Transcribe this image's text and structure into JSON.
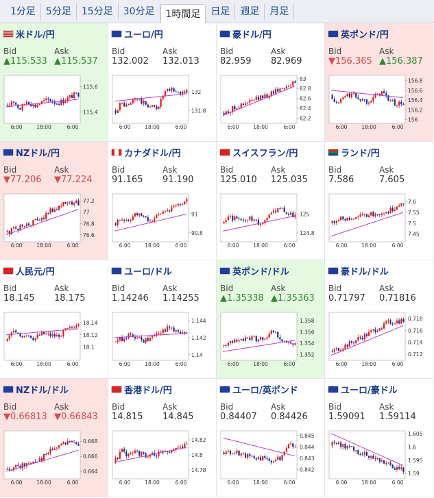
{
  "tabs": [
    "1分足",
    "5分足",
    "15分足",
    "30分足",
    "1時間足",
    "日足",
    "週足",
    "月足"
  ],
  "active_tab": 4,
  "labels": {
    "bid": "Bid",
    "ask": "Ask"
  },
  "pairs": [
    {
      "name": "米ドル/円",
      "bid": "▲115.533",
      "ask": "▲115.537",
      "trend": "up",
      "flag": "us",
      "chart_data": {
        "type": "candlestick",
        "yticks": [
          "115.6",
          "115.4"
        ],
        "xticks": [
          "6:00",
          "18:00",
          "6:00"
        ],
        "ylim": [
          115.32,
          115.68
        ],
        "start": 115.45,
        "end": 115.53,
        "ma_start": 115.44,
        "ma_end": 115.5,
        "shape": [
          0,
          0.6,
          0.1,
          0.5,
          0.2,
          0.4,
          0.5,
          0.3,
          0.4,
          0.6,
          0.7
        ]
      }
    },
    {
      "name": "ユーロ/円",
      "bid": "132.002",
      "ask": "132.013",
      "trend": "none",
      "flag": "eu",
      "chart_data": {
        "type": "candlestick",
        "yticks": [
          "132",
          "131.8"
        ],
        "xticks": [
          "6:00",
          "18:00",
          "6:00"
        ],
        "ylim": [
          131.68,
          132.16
        ],
        "start": 131.8,
        "end": 132.0,
        "ma_start": 131.9,
        "ma_end": 131.98,
        "shape": [
          0,
          0.5,
          0.3,
          0.7,
          0.4,
          0.2,
          0.1,
          0.8,
          0.9,
          0.7,
          0.75
        ]
      }
    },
    {
      "name": "豪ドル/円",
      "bid": "82.959",
      "ask": "82.969",
      "trend": "none",
      "flag": "au",
      "chart_data": {
        "type": "candlestick",
        "yticks": [
          "83",
          "82.8",
          "82.6",
          "82.4",
          "82.2"
        ],
        "xticks": [
          "6:00",
          "18:00",
          "6:00"
        ],
        "ylim": [
          82.12,
          83.04
        ],
        "start": 82.3,
        "end": 82.95,
        "ma_start": 82.25,
        "ma_end": 82.85,
        "shape": [
          0,
          0.15,
          0.3,
          0.3,
          0.45,
          0.5,
          0.55,
          0.7,
          0.8,
          0.9,
          0.95
        ]
      }
    },
    {
      "name": "英ポンド/円",
      "bid": "▼156.365",
      "ask": "▲156.387",
      "trend": "mix",
      "flag": "gb",
      "chart_data": {
        "type": "candlestick",
        "yticks": [
          "156.8",
          "156.6",
          "156.4",
          "156.2",
          "156"
        ],
        "xticks": [
          "6:00",
          "18:00",
          "6:00"
        ],
        "ylim": [
          155.95,
          156.88
        ],
        "start": 156.5,
        "end": 156.36,
        "ma_start": 156.6,
        "ma_end": 156.45,
        "shape": [
          0.5,
          0.2,
          0.6,
          0.7,
          0.5,
          0.4,
          0.6,
          0.9,
          0.5,
          0.3,
          0.35
        ]
      }
    },
    {
      "name": "NZドル/円",
      "bid": "▼77.206",
      "ask": "▼77.224",
      "trend": "down",
      "flag": "nz",
      "chart_data": {
        "type": "candlestick",
        "yticks": [
          "77.2",
          "77",
          "76.8",
          "76.6"
        ],
        "xticks": [
          "6:00",
          "18:00",
          "6:00"
        ],
        "ylim": [
          76.5,
          77.3
        ],
        "start": 76.65,
        "end": 77.2,
        "ma_start": 76.6,
        "ma_end": 77.05,
        "shape": [
          0,
          0.1,
          0.2,
          0.25,
          0.35,
          0.4,
          0.75,
          0.85,
          0.95,
          0.92,
          0.9
        ]
      }
    },
    {
      "name": "カナダドル/円",
      "bid": "91.165",
      "ask": "91.190",
      "trend": "none",
      "flag": "ca",
      "chart_data": {
        "type": "candlestick",
        "yticks": [
          "91",
          "90.8"
        ],
        "xticks": [
          "6:00",
          "18:00",
          "6:00"
        ],
        "ylim": [
          90.72,
          91.2
        ],
        "start": 90.9,
        "end": 91.17,
        "ma_start": 90.82,
        "ma_end": 91.0,
        "shape": [
          0.3,
          0.5,
          0.4,
          0.6,
          0.5,
          0.2,
          0.4,
          0.6,
          0.7,
          0.85,
          0.95
        ]
      }
    },
    {
      "name": "スイスフラン/円",
      "bid": "125.010",
      "ask": "125.035",
      "trend": "none",
      "flag": "ch",
      "chart_data": {
        "type": "candlestick",
        "yticks": [
          "125",
          "124.8"
        ],
        "xticks": [
          "6:00",
          "18:00",
          "6:00"
        ],
        "ylim": [
          124.72,
          125.2
        ],
        "start": 124.9,
        "end": 125.01,
        "ma_start": 124.82,
        "ma_end": 124.98,
        "shape": [
          0.4,
          0.6,
          0.5,
          0.3,
          0.5,
          0.2,
          0.4,
          0.7,
          0.95,
          0.6,
          0.55
        ]
      }
    },
    {
      "name": "ランド/円",
      "bid": "7.586",
      "ask": "7.605",
      "trend": "none",
      "flag": "za",
      "chart_data": {
        "type": "candlestick",
        "yticks": [
          "7.6",
          "7.55",
          "7.5",
          "7.45"
        ],
        "xticks": [
          "6:00",
          "18:00",
          "6:00"
        ],
        "ylim": [
          7.42,
          7.63
        ],
        "start": 7.5,
        "end": 7.59,
        "ma_start": 7.44,
        "ma_end": 7.55,
        "shape": [
          0.4,
          0.5,
          0.5,
          0.55,
          0.5,
          0.55,
          0.55,
          0.6,
          0.65,
          0.8,
          0.95
        ]
      }
    },
    {
      "name": "人民元/円",
      "bid": "18.145",
      "ask": "18.175",
      "trend": "none",
      "flag": "cn",
      "chart_data": {
        "type": "candlestick",
        "yticks": [
          "18.14",
          "18.12",
          "18.1"
        ],
        "xticks": [
          "6:00",
          "18:00",
          "6:00"
        ],
        "ylim": [
          18.08,
          18.155
        ],
        "start": 18.11,
        "end": 18.145,
        "ma_start": 18.12,
        "ma_end": 18.13,
        "shape": [
          0.2,
          0.8,
          0.5,
          0.6,
          0.3,
          0.5,
          0.4,
          0.3,
          0.5,
          0.6,
          0.9
        ]
      }
    },
    {
      "name": "ユーロ/ドル",
      "bid": "1.14246",
      "ask": "1.14255",
      "trend": "none",
      "flag": "eu",
      "chart_data": {
        "type": "candlestick",
        "yticks": [
          "1.144",
          "1.142",
          "1.14"
        ],
        "xticks": [
          "6:00",
          "18:00",
          "6:00"
        ],
        "ylim": [
          1.1395,
          1.1448
        ],
        "start": 1.1415,
        "end": 1.1425,
        "ma_start": 1.142,
        "ma_end": 1.1425,
        "shape": [
          0.5,
          0.4,
          0.6,
          0.5,
          0.3,
          0.4,
          0.7,
          0.8,
          0.9,
          0.6,
          0.55
        ]
      }
    },
    {
      "name": "英ポンド/ドル",
      "bid": "▲1.35338",
      "ask": "▲1.35363",
      "trend": "up",
      "flag": "gb",
      "chart_data": {
        "type": "candlestick",
        "yticks": [
          "1.358",
          "1.356",
          "1.354",
          "1.352"
        ],
        "xticks": [
          "6:00",
          "18:00",
          "6:00"
        ],
        "ylim": [
          1.3512,
          1.3592
        ],
        "start": 1.3535,
        "end": 1.3534,
        "ma_start": 1.3525,
        "ma_end": 1.3545,
        "shape": [
          0.3,
          0.4,
          0.5,
          0.5,
          0.6,
          0.55,
          0.7,
          0.9,
          0.6,
          0.4,
          0.35
        ]
      }
    },
    {
      "name": "豪ドル/ドル",
      "bid": "0.71797",
      "ask": "0.71816",
      "trend": "none",
      "flag": "au",
      "chart_data": {
        "type": "candlestick",
        "yticks": [
          "0.718",
          "0.716",
          "0.714",
          "0.712"
        ],
        "xticks": [
          "6:00",
          "18:00",
          "6:00"
        ],
        "ylim": [
          0.7112,
          0.7188
        ],
        "start": 0.7125,
        "end": 0.718,
        "ma_start": 0.7118,
        "ma_end": 0.7168,
        "shape": [
          0,
          0.1,
          0.2,
          0.3,
          0.45,
          0.55,
          0.7,
          0.85,
          0.95,
          0.95,
          0.92
        ]
      }
    },
    {
      "name": "NZドル/ドル",
      "bid": "▼0.66813",
      "ask": "▼0.66843",
      "trend": "down",
      "flag": "nz",
      "chart_data": {
        "type": "candlestick",
        "yticks": [
          "0.668",
          "0.666",
          "0.664"
        ],
        "xticks": [
          "6:00",
          "18:00",
          "6:00"
        ],
        "ylim": [
          0.6632,
          0.6692
        ],
        "start": 0.6642,
        "end": 0.6681,
        "ma_start": 0.664,
        "ma_end": 0.6668,
        "shape": [
          0,
          0.1,
          0.15,
          0.2,
          0.3,
          0.35,
          0.6,
          0.75,
          0.9,
          0.85,
          0.8
        ]
      }
    },
    {
      "name": "香港ドル/円",
      "bid": "14.815",
      "ask": "14.845",
      "trend": "none",
      "flag": "hk",
      "chart_data": {
        "type": "candlestick",
        "yticks": [
          "14.82",
          "14.8",
          "14.78"
        ],
        "xticks": [
          "6:00",
          "18:00",
          "6:00"
        ],
        "ylim": [
          14.77,
          14.83
        ],
        "start": 14.79,
        "end": 14.815,
        "ma_start": 14.79,
        "ma_end": 14.81,
        "shape": [
          0.2,
          0.8,
          0.6,
          0.7,
          0.5,
          0.4,
          0.5,
          0.45,
          0.6,
          0.65,
          0.75
        ]
      }
    },
    {
      "name": "ユーロ/英ポンド",
      "bid": "0.84407",
      "ask": "0.84426",
      "trend": "none",
      "flag": "eu",
      "chart_data": {
        "type": "candlestick",
        "yticks": [
          "0.845",
          "0.844",
          "0.843",
          "0.842"
        ],
        "xticks": [
          "6:00",
          "18:00",
          "6:00"
        ],
        "ylim": [
          0.8413,
          0.8453
        ],
        "start": 0.8435,
        "end": 0.8441,
        "ma_start": 0.8448,
        "ma_end": 0.8432,
        "shape": [
          0.6,
          0.5,
          0.55,
          0.4,
          0.35,
          0.25,
          0.15,
          0.1,
          0.2,
          0.8,
          0.7
        ]
      }
    },
    {
      "name": "ユーロ/豪ドル",
      "bid": "1.59091",
      "ask": "1.59114",
      "trend": "none",
      "flag": "eu",
      "chart_data": {
        "type": "candlestick",
        "yticks": [
          "1.605",
          "1.6",
          "1.595",
          "1.59"
        ],
        "xticks": [
          "6:00",
          "18:00",
          "6:00"
        ],
        "ylim": [
          1.5885,
          1.6055
        ],
        "start": 1.6005,
        "end": 1.5909,
        "ma_start": 1.605,
        "ma_end": 1.593,
        "shape": [
          1,
          0.9,
          0.8,
          0.75,
          0.65,
          0.55,
          0.45,
          0.35,
          0.25,
          0.1,
          0.05
        ]
      }
    }
  ]
}
